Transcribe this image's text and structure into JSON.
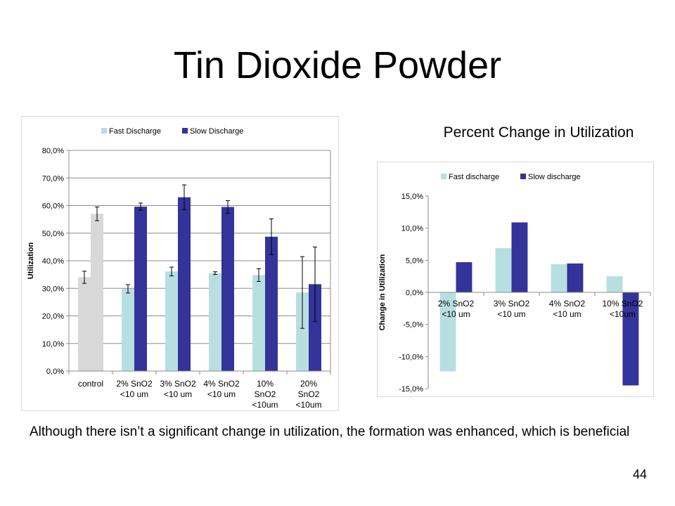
{
  "slide": {
    "title": "Tin Dioxide Powder",
    "caption": "Although there isn’t a significant change in utilization, the formation was enhanced, which is beneficial",
    "page_number": "44"
  },
  "chart_data": [
    {
      "type": "bar",
      "title": "",
      "xlabel": "",
      "ylabel": "Utilization",
      "ylim": [
        0,
        80
      ],
      "ytick_step": 10,
      "ytick_labels": [
        "0,0%",
        "10,0%",
        "20,0%",
        "30,0%",
        "40,0%",
        "50,0%",
        "60,0%",
        "70,0%",
        "80,0%"
      ],
      "grid": true,
      "legend_position": "top",
      "categories": [
        [
          "control"
        ],
        [
          "2% SnO2",
          "<10 um"
        ],
        [
          "3% SnO2",
          "<10 um"
        ],
        [
          "4% SnO2",
          "<10 um"
        ],
        [
          "10%",
          "SnO2",
          "<10um"
        ],
        [
          "20%",
          "SnO2",
          "<10um"
        ]
      ],
      "series": [
        {
          "name": "Fast Discharge",
          "color": "#b7dfe2",
          "values": [
            34.0,
            29.8,
            36.1,
            35.5,
            34.8,
            28.5
          ],
          "errors": [
            2.2,
            1.5,
            1.6,
            0.5,
            2.3,
            13.0
          ]
        },
        {
          "name": "Slow Discharge",
          "color": "#33339a",
          "values": [
            57.0,
            59.6,
            63.0,
            59.5,
            48.7,
            31.5
          ],
          "errors": [
            2.5,
            1.3,
            4.5,
            2.3,
            6.5,
            13.5
          ]
        }
      ],
      "control_color": "#d8d8d8"
    },
    {
      "type": "bar",
      "title": "Percent Change in Utilization",
      "xlabel": "",
      "ylabel": "Change in Utilization",
      "ylim": [
        -15,
        15
      ],
      "ytick_step": 5,
      "ytick_labels": [
        "-15,0%",
        "-10,0%",
        "-5,0%",
        "0,0%",
        "5,0%",
        "10,0%",
        "15,0%"
      ],
      "grid": false,
      "legend_position": "top",
      "categories": [
        [
          "2% SnO2",
          "<10 um"
        ],
        [
          "3% SnO2",
          "<10 um"
        ],
        [
          "4% SnO2",
          "<10 um"
        ],
        [
          "10% SnO2",
          "<10um"
        ]
      ],
      "series": [
        {
          "name": "Fast discharge",
          "color": "#b7dfe2",
          "values": [
            -12.3,
            6.9,
            4.4,
            2.5
          ]
        },
        {
          "name": "Slow discharge",
          "color": "#33339a",
          "values": [
            4.7,
            10.9,
            4.5,
            -14.5
          ]
        }
      ]
    }
  ]
}
